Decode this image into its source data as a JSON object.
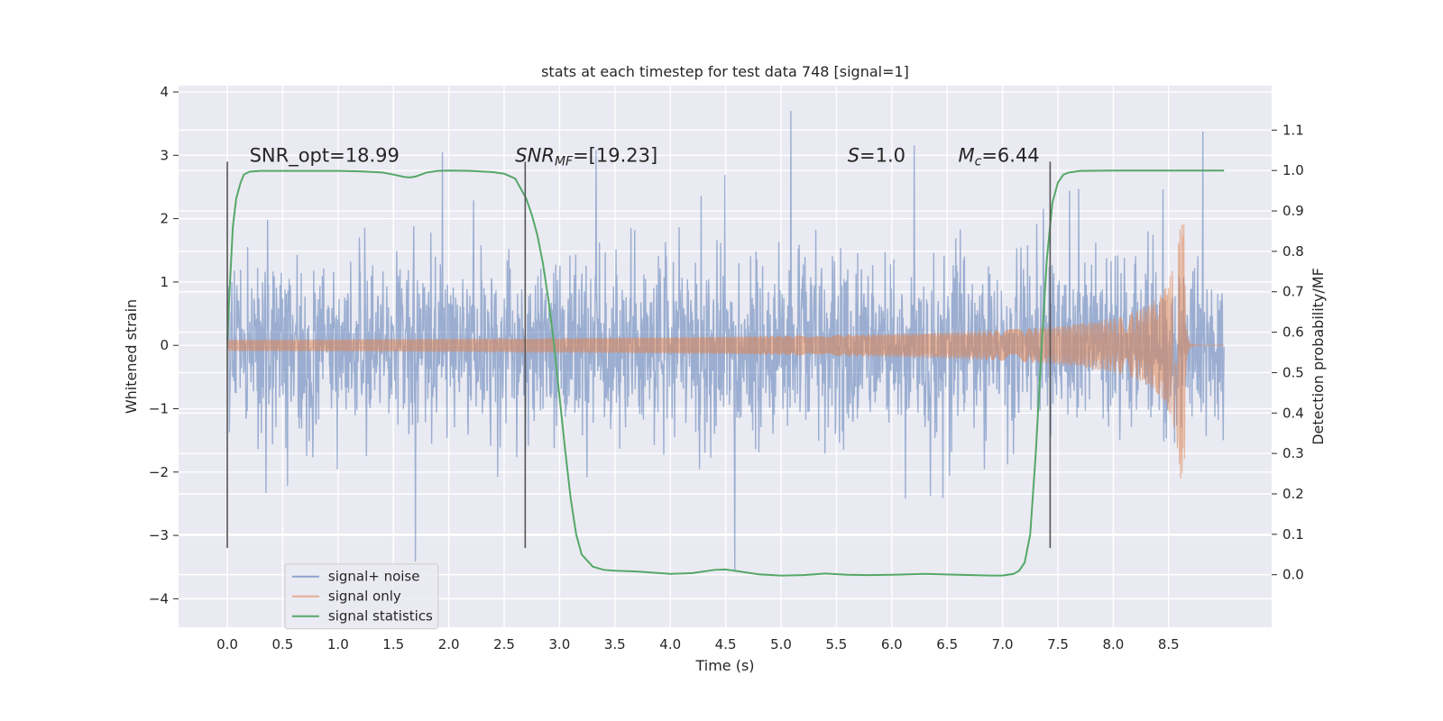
{
  "chart_data": {
    "type": "line",
    "title": "stats at each timestep for test data 748 [signal=1]",
    "xlabel": "Time (s)",
    "ylabel": "Whitened strain",
    "ylabel_right": "Detection probability/MF",
    "xlim": [
      -0.44,
      9.43
    ],
    "ylim": [
      -4.45,
      4.1
    ],
    "ylim_right": [
      -0.13,
      1.21
    ],
    "xticks": [
      "0.0",
      "0.5",
      "1.0",
      "1.5",
      "2.0",
      "2.5",
      "3.0",
      "3.5",
      "4.0",
      "4.5",
      "5.0",
      "5.5",
      "6.0",
      "6.5",
      "7.0",
      "7.5",
      "8.0",
      "8.5"
    ],
    "yticks_left": [
      "−4",
      "−3",
      "−2",
      "−1",
      "0",
      "1",
      "2",
      "3",
      "4"
    ],
    "yticks_right": [
      "0.0",
      "0.1",
      "0.2",
      "0.3",
      "0.4",
      "0.5",
      "0.6",
      "0.7",
      "0.8",
      "0.9",
      "1.0",
      "1.1"
    ],
    "grid": true,
    "legend_position": "lower-left",
    "annotations": {
      "snr_opt": "SNR_opt=18.99",
      "snr_mf_label": "SNR",
      "snr_mf_sub": "MF",
      "snr_mf_value": "=[19.23]",
      "s_label": "S",
      "s_value": "=1.0",
      "mc_label": "M",
      "mc_sub": "c",
      "mc_value": "=6.44"
    },
    "vertical_markers_x": [
      0.0,
      2.69,
      7.43
    ],
    "series": [
      {
        "name": "signal+ noise",
        "color": "#4c72b0",
        "kind": "noise",
        "t_start": 0.0,
        "t_end": 9.0,
        "typical_amplitude": 1.05,
        "max_abs": 3.7
      },
      {
        "name": "signal only",
        "color": "#dd8452",
        "kind": "chirp",
        "t_start": 0.0,
        "t_merge": 8.65,
        "t_end": 9.0,
        "peak_upper": 1.9,
        "peak_lower": -2.3
      },
      {
        "name": "signal statistics",
        "color": "#55a868",
        "axis": "right",
        "x": [
          0.0,
          0.02,
          0.05,
          0.08,
          0.12,
          0.15,
          0.2,
          0.3,
          0.5,
          0.8,
          1.0,
          1.2,
          1.4,
          1.5,
          1.6,
          1.65,
          1.7,
          1.75,
          1.8,
          1.9,
          2.0,
          2.2,
          2.4,
          2.5,
          2.6,
          2.7,
          2.75,
          2.8,
          2.85,
          2.9,
          2.95,
          3.0,
          3.05,
          3.1,
          3.15,
          3.2,
          3.3,
          3.4,
          3.5,
          3.7,
          3.9,
          4.0,
          4.2,
          4.4,
          4.5,
          4.6,
          4.8,
          5.0,
          5.2,
          5.4,
          5.6,
          5.8,
          6.0,
          6.3,
          6.6,
          6.9,
          7.0,
          7.1,
          7.15,
          7.2,
          7.25,
          7.3,
          7.35,
          7.4,
          7.45,
          7.5,
          7.55,
          7.6,
          7.7,
          8.0,
          8.5,
          9.0
        ],
        "values": [
          0.58,
          0.7,
          0.86,
          0.93,
          0.97,
          0.99,
          0.997,
          0.999,
          0.999,
          0.999,
          0.999,
          0.998,
          0.995,
          0.99,
          0.984,
          0.983,
          0.985,
          0.99,
          0.995,
          0.999,
          1.0,
          0.999,
          0.996,
          0.992,
          0.98,
          0.93,
          0.89,
          0.84,
          0.77,
          0.68,
          0.57,
          0.44,
          0.31,
          0.19,
          0.1,
          0.05,
          0.02,
          0.012,
          0.01,
          0.008,
          0.004,
          0.002,
          0.004,
          0.012,
          0.013,
          0.009,
          0.001,
          -0.002,
          -0.001,
          0.003,
          0.0,
          -0.001,
          0.0,
          0.002,
          0.0,
          -0.002,
          -0.002,
          0.002,
          0.01,
          0.03,
          0.1,
          0.3,
          0.55,
          0.78,
          0.92,
          0.97,
          0.99,
          0.995,
          0.999,
          1.0,
          1.0,
          1.0
        ]
      }
    ]
  }
}
